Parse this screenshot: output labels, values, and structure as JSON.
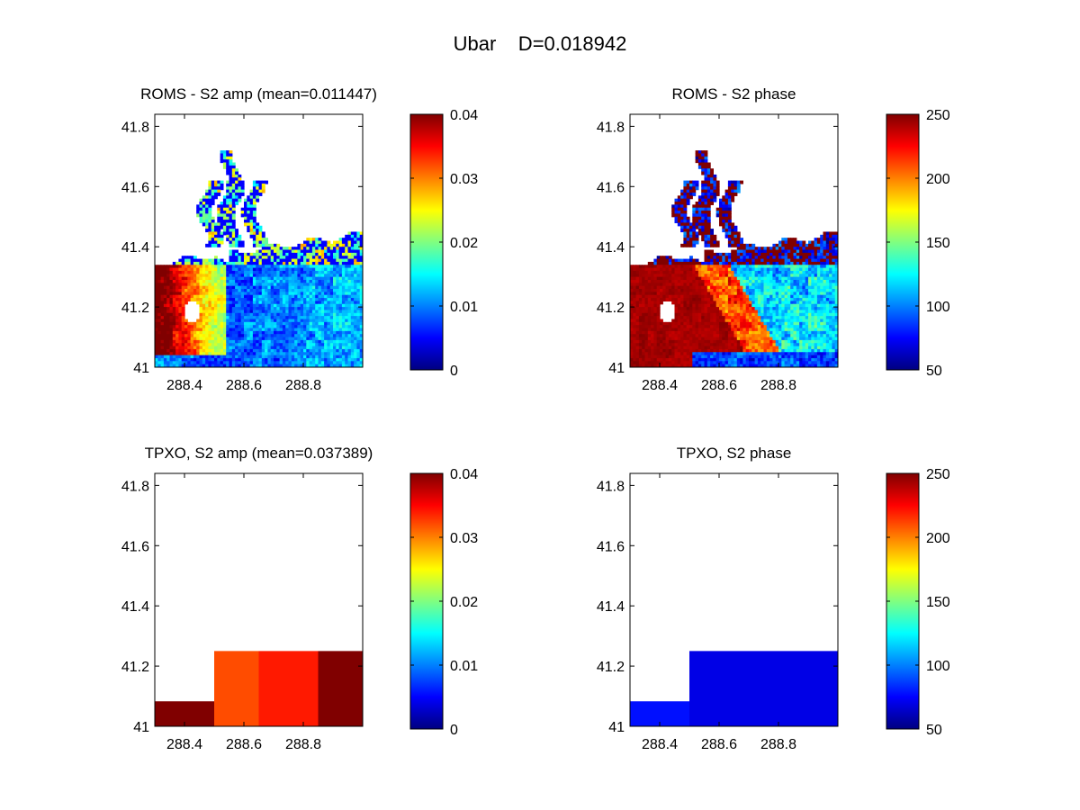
{
  "figure": {
    "suptitle": "Ubar    D=0.018942"
  },
  "chart_data": [
    {
      "type": "heatmap",
      "title": "ROMS - S2 amp (mean=0.011447)",
      "field": "roms_amp",
      "xticks": [
        "288.4",
        "288.6",
        "288.8"
      ],
      "yticks": [
        "41",
        "41.2",
        "41.4",
        "41.6",
        "41.8"
      ],
      "xlim": [
        288.3,
        289.0
      ],
      "ylim": [
        41.0,
        41.84
      ],
      "colorbar": {
        "ticks": [
          "0",
          "0.01",
          "0.02",
          "0.03",
          "0.04"
        ],
        "range": [
          0,
          0.04
        ],
        "colormap": "jet"
      }
    },
    {
      "type": "heatmap",
      "title": "ROMS - S2 phase",
      "field": "roms_phase",
      "xticks": [
        "288.4",
        "288.6",
        "288.8"
      ],
      "yticks": [
        "41",
        "41.2",
        "41.4",
        "41.6",
        "41.8"
      ],
      "xlim": [
        288.3,
        289.0
      ],
      "ylim": [
        41.0,
        41.84
      ],
      "colorbar": {
        "ticks": [
          "50",
          "100",
          "150",
          "200",
          "250"
        ],
        "range": [
          50,
          250
        ],
        "colormap": "jet"
      }
    },
    {
      "type": "heatmap",
      "title": "TPXO, S2 amp (mean=0.037389)",
      "field": "tpxo_amp",
      "xticks": [
        "288.4",
        "288.6",
        "288.8"
      ],
      "yticks": [
        "41",
        "41.2",
        "41.4",
        "41.6",
        "41.8"
      ],
      "xlim": [
        288.3,
        289.0
      ],
      "ylim": [
        41.0,
        41.84
      ],
      "colorbar": {
        "ticks": [
          "0",
          "0.01",
          "0.02",
          "0.03",
          "0.04"
        ],
        "range": [
          0,
          0.04
        ],
        "colormap": "jet"
      },
      "cells": [
        {
          "lon": [
            288.3,
            288.5
          ],
          "lat": [
            41.0,
            41.083
          ],
          "value": 0.04
        },
        {
          "lon": [
            288.5,
            288.65
          ],
          "lat": [
            41.0,
            41.25
          ],
          "value": 0.032
        },
        {
          "lon": [
            288.65,
            288.85
          ],
          "lat": [
            41.0,
            41.25
          ],
          "value": 0.034
        },
        {
          "lon": [
            288.85,
            289.0
          ],
          "lat": [
            41.0,
            41.25
          ],
          "value": 0.04
        }
      ]
    },
    {
      "type": "heatmap",
      "title": "TPXO, S2 phase",
      "field": "tpxo_phase",
      "xticks": [
        "288.4",
        "288.6",
        "288.8"
      ],
      "yticks": [
        "41",
        "41.2",
        "41.4",
        "41.6",
        "41.8"
      ],
      "xlim": [
        288.3,
        289.0
      ],
      "ylim": [
        41.0,
        41.84
      ],
      "colorbar": {
        "ticks": [
          "50",
          "100",
          "150",
          "200",
          "250"
        ],
        "range": [
          50,
          250
        ],
        "colormap": "jet"
      },
      "cells": [
        {
          "lon": [
            288.3,
            288.5
          ],
          "lat": [
            41.0,
            41.083
          ],
          "value": 78
        },
        {
          "lon": [
            288.5,
            289.0
          ],
          "lat": [
            41.0,
            41.25
          ],
          "value": 70
        }
      ]
    }
  ]
}
